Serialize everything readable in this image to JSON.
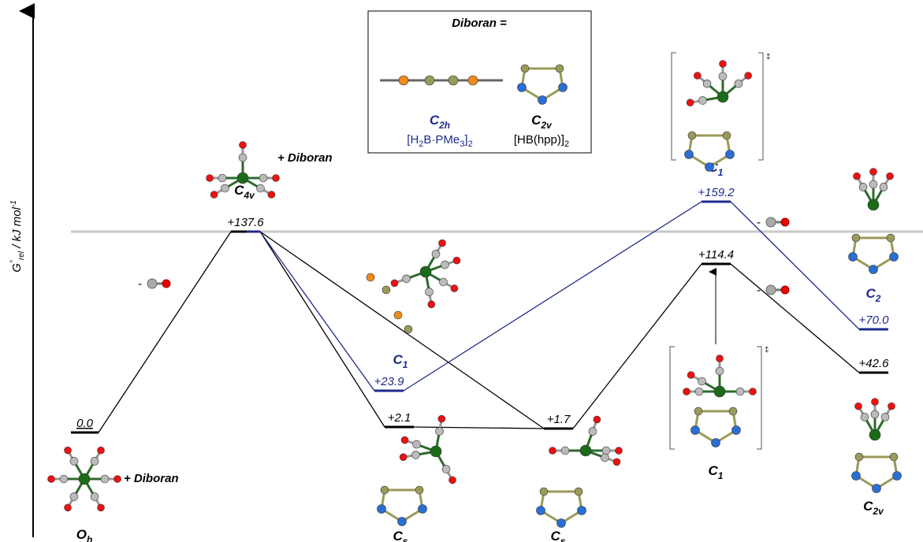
{
  "axis_label": {
    "symbol": "G",
    "degree": "°",
    "sub": "rel",
    "unit": " / kJ mol",
    "exp": "-1"
  },
  "levels": [
    "0.0",
    "+137.6",
    "+23.9",
    "+2.1",
    "+1.7",
    "+159.2",
    "+114.4",
    "+70.0",
    "+42.6"
  ],
  "structures": [
    {
      "main": "O",
      "sub": "h"
    },
    {
      "main": "C",
      "sub": "4v"
    },
    {
      "main": "C",
      "sub": "1"
    },
    {
      "main": "C",
      "sub": "s"
    },
    {
      "main": "C",
      "sub": "s"
    },
    {
      "main": "C",
      "sub": "1"
    },
    {
      "main": "C",
      "sub": "1"
    },
    {
      "main": "C",
      "sub": "2"
    },
    {
      "main": "C",
      "sub": "2v"
    }
  ],
  "plus_diboran": [
    "+ Diboran",
    "+ Diboran"
  ],
  "co_loss": [
    "-",
    "-",
    "-"
  ],
  "ts_mark": [
    "‡",
    "‡"
  ],
  "inset": {
    "title": "Diboran =",
    "left": {
      "main": "C",
      "sub": "2h",
      "formula": [
        "[H",
        "2",
        "B·PMe",
        "3",
        "]",
        "2"
      ]
    },
    "right": {
      "main": "C",
      "sub": "2v",
      "formula": [
        "[HB(hpp)]",
        "2"
      ]
    }
  }
}
